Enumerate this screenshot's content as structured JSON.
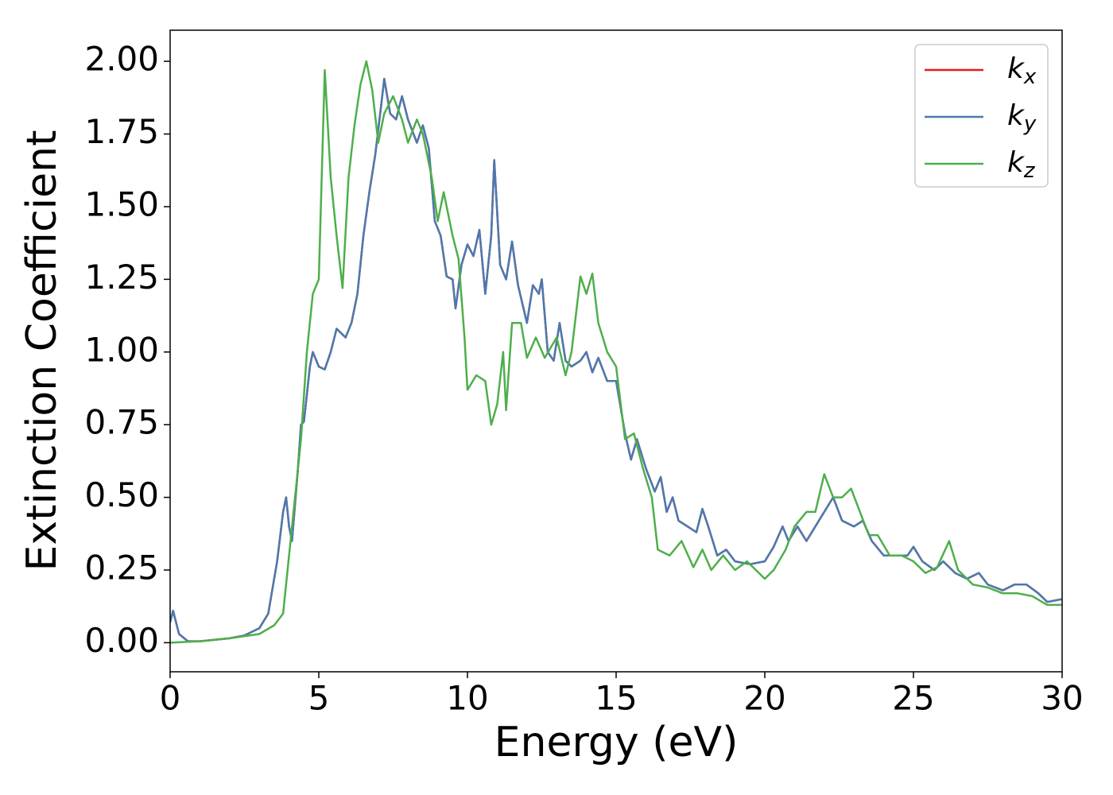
{
  "chart_data": {
    "type": "line",
    "xlabel": "Energy (eV)",
    "ylabel": "Extinction Coefficient",
    "xlim": [
      0,
      30
    ],
    "ylim": [
      -0.1,
      2.107
    ],
    "xticks": [
      0,
      5,
      10,
      15,
      20,
      25,
      30
    ],
    "yticks": [
      {
        "value": 0,
        "label": "0.00"
      },
      {
        "value": 0.25,
        "label": "0.25"
      },
      {
        "value": 0.5,
        "label": "0.50"
      },
      {
        "value": 0.75,
        "label": "0.75"
      },
      {
        "value": 1,
        "label": "1.00"
      },
      {
        "value": 1.25,
        "label": "1.25"
      },
      {
        "value": 1.5,
        "label": "1.50"
      },
      {
        "value": 1.75,
        "label": "1.75"
      },
      {
        "value": 2,
        "label": "2.00"
      }
    ],
    "legend": "upper right",
    "series": [
      {
        "name": "kx",
        "color": "#e41a1c",
        "x": [
          0,
          0.1,
          0.3,
          0.6,
          1,
          2,
          2.5,
          3,
          3.3,
          3.6,
          3.8,
          3.9,
          4,
          4.1,
          4.3,
          4.4,
          4.5,
          4.7,
          4.8,
          5,
          5.2,
          5.4,
          5.6,
          5.8,
          5.9,
          6.1,
          6.3,
          6.5,
          6.7,
          6.9,
          7.1,
          7.2,
          7.4,
          7.6,
          7.8,
          8,
          8.3,
          8.5,
          8.7,
          8.9,
          9.1,
          9.3,
          9.5,
          9.6,
          9.8,
          10,
          10.2,
          10.4,
          10.6,
          10.8,
          10.9,
          11.1,
          11.3,
          11.5,
          11.7,
          12,
          12.2,
          12.4,
          12.5,
          12.7,
          12.9,
          13.1,
          13.3,
          13.5,
          13.8,
          14,
          14.2,
          14.4,
          14.7,
          15,
          15.3,
          15.5,
          15.7,
          16,
          16.3,
          16.5,
          16.7,
          16.9,
          17.1,
          17.4,
          17.7,
          17.9,
          18.1,
          18.4,
          18.7,
          19,
          19.5,
          20,
          20.3,
          20.6,
          20.8,
          21.1,
          21.4,
          21.7,
          22,
          22.3,
          22.6,
          23,
          23.3,
          23.6,
          24,
          24.5,
          24.8,
          25,
          25.3,
          25.7,
          26,
          26.4,
          26.8,
          27.2,
          27.5,
          28,
          28.4,
          28.8,
          29.2,
          29.5,
          30
        ],
        "values": [
          0.07,
          0.11,
          0.03,
          0.005,
          0.005,
          0.015,
          0.025,
          0.05,
          0.1,
          0.28,
          0.45,
          0.5,
          0.4,
          0.35,
          0.6,
          0.75,
          0.76,
          0.95,
          1.0,
          0.95,
          0.94,
          1.0,
          1.08,
          1.06,
          1.05,
          1.1,
          1.2,
          1.4,
          1.55,
          1.68,
          1.85,
          1.94,
          1.82,
          1.8,
          1.88,
          1.8,
          1.72,
          1.78,
          1.7,
          1.45,
          1.4,
          1.26,
          1.25,
          1.15,
          1.3,
          1.37,
          1.33,
          1.42,
          1.2,
          1.4,
          1.66,
          1.3,
          1.25,
          1.38,
          1.23,
          1.1,
          1.23,
          1.2,
          1.25,
          1.0,
          0.97,
          1.1,
          0.97,
          0.95,
          0.97,
          1.0,
          0.93,
          0.98,
          0.9,
          0.9,
          0.72,
          0.63,
          0.7,
          0.6,
          0.52,
          0.57,
          0.45,
          0.5,
          0.42,
          0.4,
          0.38,
          0.46,
          0.4,
          0.3,
          0.32,
          0.28,
          0.27,
          0.28,
          0.33,
          0.4,
          0.35,
          0.4,
          0.35,
          0.4,
          0.45,
          0.5,
          0.42,
          0.4,
          0.42,
          0.35,
          0.3,
          0.3,
          0.3,
          0.33,
          0.28,
          0.25,
          0.28,
          0.24,
          0.22,
          0.24,
          0.2,
          0.18,
          0.2,
          0.2,
          0.17,
          0.14,
          0.15
        ]
      },
      {
        "name": "ky",
        "color": "#4a7ab0",
        "x": [
          0,
          0.1,
          0.3,
          0.6,
          1,
          2,
          2.5,
          3,
          3.3,
          3.6,
          3.8,
          3.9,
          4,
          4.1,
          4.3,
          4.4,
          4.5,
          4.7,
          4.8,
          5,
          5.2,
          5.4,
          5.6,
          5.8,
          5.9,
          6.1,
          6.3,
          6.5,
          6.7,
          6.9,
          7.1,
          7.2,
          7.4,
          7.6,
          7.8,
          8,
          8.3,
          8.5,
          8.7,
          8.9,
          9.1,
          9.3,
          9.5,
          9.6,
          9.8,
          10,
          10.2,
          10.4,
          10.6,
          10.8,
          10.9,
          11.1,
          11.3,
          11.5,
          11.7,
          12,
          12.2,
          12.4,
          12.5,
          12.7,
          12.9,
          13.1,
          13.3,
          13.5,
          13.8,
          14,
          14.2,
          14.4,
          14.7,
          15,
          15.3,
          15.5,
          15.7,
          16,
          16.3,
          16.5,
          16.7,
          16.9,
          17.1,
          17.4,
          17.7,
          17.9,
          18.1,
          18.4,
          18.7,
          19,
          19.5,
          20,
          20.3,
          20.6,
          20.8,
          21.1,
          21.4,
          21.7,
          22,
          22.3,
          22.6,
          23,
          23.3,
          23.6,
          24,
          24.5,
          24.8,
          25,
          25.3,
          25.7,
          26,
          26.4,
          26.8,
          27.2,
          27.5,
          28,
          28.4,
          28.8,
          29.2,
          29.5,
          30
        ],
        "values": [
          0.07,
          0.11,
          0.03,
          0.005,
          0.005,
          0.015,
          0.025,
          0.05,
          0.1,
          0.28,
          0.45,
          0.5,
          0.4,
          0.35,
          0.6,
          0.75,
          0.76,
          0.95,
          1.0,
          0.95,
          0.94,
          1.0,
          1.08,
          1.06,
          1.05,
          1.1,
          1.2,
          1.4,
          1.55,
          1.68,
          1.85,
          1.94,
          1.82,
          1.8,
          1.88,
          1.8,
          1.72,
          1.78,
          1.7,
          1.45,
          1.4,
          1.26,
          1.25,
          1.15,
          1.3,
          1.37,
          1.33,
          1.42,
          1.2,
          1.4,
          1.66,
          1.3,
          1.25,
          1.38,
          1.23,
          1.1,
          1.23,
          1.2,
          1.25,
          1.0,
          0.97,
          1.1,
          0.97,
          0.95,
          0.97,
          1.0,
          0.93,
          0.98,
          0.9,
          0.9,
          0.72,
          0.63,
          0.7,
          0.6,
          0.52,
          0.57,
          0.45,
          0.5,
          0.42,
          0.4,
          0.38,
          0.46,
          0.4,
          0.3,
          0.32,
          0.28,
          0.27,
          0.28,
          0.33,
          0.4,
          0.35,
          0.4,
          0.35,
          0.4,
          0.45,
          0.5,
          0.42,
          0.4,
          0.42,
          0.35,
          0.3,
          0.3,
          0.3,
          0.33,
          0.28,
          0.25,
          0.28,
          0.24,
          0.22,
          0.24,
          0.2,
          0.18,
          0.2,
          0.2,
          0.17,
          0.14,
          0.15
        ]
      },
      {
        "name": "kz",
        "color": "#4daf4a",
        "x": [
          0,
          1,
          2,
          3,
          3.5,
          3.8,
          4,
          4.2,
          4.4,
          4.6,
          4.8,
          5,
          5.2,
          5.4,
          5.6,
          5.8,
          6,
          6.2,
          6.4,
          6.6,
          6.8,
          7,
          7.2,
          7.5,
          7.8,
          8,
          8.3,
          8.5,
          8.8,
          9,
          9.2,
          9.5,
          9.7,
          9.9,
          10,
          10.3,
          10.6,
          10.8,
          11,
          11.2,
          11.3,
          11.5,
          11.8,
          12,
          12.3,
          12.6,
          13,
          13.3,
          13.5,
          13.8,
          14,
          14.2,
          14.4,
          14.7,
          15,
          15.3,
          15.6,
          15.9,
          16.2,
          16.4,
          16.8,
          17.2,
          17.6,
          17.9,
          18.2,
          18.6,
          19,
          19.4,
          19.7,
          20,
          20.3,
          20.7,
          21,
          21.4,
          21.7,
          22,
          22.3,
          22.6,
          22.9,
          23.2,
          23.5,
          23.8,
          24.2,
          24.6,
          25,
          25.4,
          25.8,
          26.2,
          26.5,
          27,
          27.5,
          28,
          28.5,
          29,
          29.5,
          30
        ],
        "values": [
          0,
          0.005,
          0.015,
          0.03,
          0.06,
          0.1,
          0.3,
          0.5,
          0.7,
          1.0,
          1.2,
          1.25,
          1.97,
          1.6,
          1.4,
          1.22,
          1.6,
          1.78,
          1.92,
          2.0,
          1.9,
          1.72,
          1.82,
          1.88,
          1.8,
          1.72,
          1.8,
          1.75,
          1.6,
          1.45,
          1.55,
          1.4,
          1.32,
          1.05,
          0.87,
          0.92,
          0.9,
          0.75,
          0.82,
          1.0,
          0.8,
          1.1,
          1.1,
          0.98,
          1.05,
          0.98,
          1.05,
          0.92,
          1.0,
          1.26,
          1.2,
          1.27,
          1.1,
          1.0,
          0.95,
          0.7,
          0.72,
          0.6,
          0.5,
          0.32,
          0.3,
          0.35,
          0.26,
          0.32,
          0.25,
          0.3,
          0.25,
          0.28,
          0.25,
          0.22,
          0.25,
          0.32,
          0.4,
          0.45,
          0.45,
          0.58,
          0.5,
          0.5,
          0.53,
          0.45,
          0.37,
          0.37,
          0.3,
          0.3,
          0.28,
          0.24,
          0.26,
          0.35,
          0.25,
          0.2,
          0.19,
          0.17,
          0.17,
          0.16,
          0.13,
          0.13
        ]
      }
    ]
  }
}
